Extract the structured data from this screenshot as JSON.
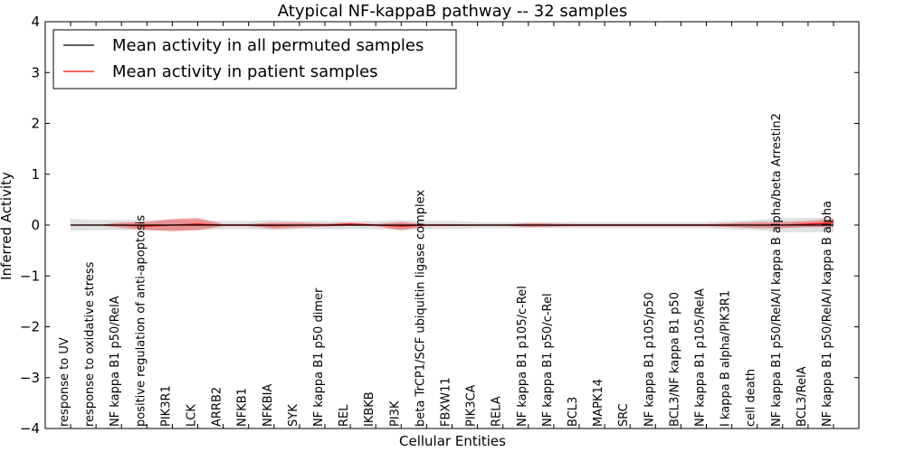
{
  "chart_data": {
    "type": "line",
    "title": "Atypical NF-kappaB pathway -- 32 samples",
    "xlabel": "Cellular Entities",
    "ylabel": "Inferred Activity",
    "ylim": [
      -4,
      4
    ],
    "yticks": [
      -4,
      -3,
      -2,
      -1,
      0,
      1,
      2,
      3,
      4
    ],
    "ytick_labels": [
      "−4",
      "−3",
      "−2",
      "−1",
      "0",
      "1",
      "2",
      "3",
      "4"
    ],
    "grid": false,
    "legend_position": "top-left",
    "categories": [
      "response to UV",
      "response to oxidative stress",
      "NF kappa B1 p50/RelA",
      "positive regulation of anti-apoptosis",
      "PIK3R1",
      "LCK",
      "ARRB2",
      "NFKB1",
      "NFKBIA",
      "SYK",
      "NF kappa B1 p50 dimer",
      "REL",
      "IKBKB",
      "PI3K",
      "beta TrCP1/SCF ubiquitin ligase complex",
      "FBXW11",
      "PIK3CA",
      "RELA",
      "NF kappa B1 p105/c-Rel",
      "NF kappa B1 p50/c-Rel",
      "BCL3",
      "MAPK14",
      "SRC",
      "NF kappa B1 p105/p50",
      "BCL3/NF kappa B1 p50",
      "NF kappa B1 p105/RelA",
      "I kappa B alpha/PIK3R1",
      "cell death",
      "NF kappa B1 p50/RelA/I kappa B alpha/beta Arrestin2",
      "BCL3/RelA",
      "NF kappa B1 p50/RelA/I kappa B alpha"
    ],
    "series": [
      {
        "name": "Mean activity in all permuted samples",
        "color": "#000000",
        "band_color": "#bbbbbb",
        "values": [
          0,
          0,
          0,
          0,
          0,
          0,
          0,
          0,
          0,
          0,
          0,
          0,
          0,
          0,
          0,
          0,
          0,
          0,
          0,
          0,
          0,
          0,
          0,
          0,
          0,
          0,
          0,
          0,
          0,
          0,
          0
        ],
        "spread": [
          0.12,
          0.1,
          0.1,
          0.1,
          0.1,
          0.1,
          0.08,
          0.08,
          0.1,
          0.08,
          0.08,
          0.08,
          0.08,
          0.1,
          0.08,
          0.08,
          0.06,
          0.06,
          0.06,
          0.06,
          0.06,
          0.06,
          0.06,
          0.06,
          0.06,
          0.06,
          0.08,
          0.1,
          0.14,
          0.14,
          0.14
        ]
      },
      {
        "name": "Mean activity in patient samples",
        "color": "#ff0000",
        "band_color": "#ee3333",
        "values": [
          0,
          0,
          0,
          -0.02,
          0,
          0.02,
          0,
          0,
          -0.01,
          0,
          0,
          0.02,
          0,
          -0.02,
          0,
          0,
          0,
          0,
          0,
          0,
          0,
          0,
          0,
          0,
          0,
          0,
          0,
          0,
          0,
          0.02,
          0.04
        ],
        "spread": [
          0,
          0,
          0.05,
          0.08,
          0.12,
          0.12,
          0.02,
          0.02,
          0.06,
          0.05,
          0.03,
          0.03,
          0.02,
          0.08,
          0.02,
          0.02,
          0.01,
          0.01,
          0.04,
          0.03,
          0.02,
          0.02,
          0.02,
          0.02,
          0.02,
          0.02,
          0.04,
          0.06,
          0.06,
          0.06,
          0.08
        ]
      }
    ]
  }
}
